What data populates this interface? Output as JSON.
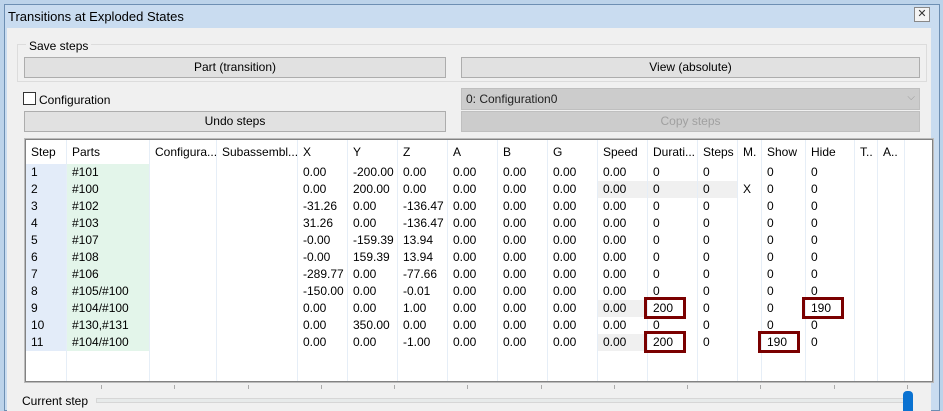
{
  "window": {
    "title": "Transitions at Exploded States",
    "close_label": "✕"
  },
  "save_steps": {
    "label": "Save steps",
    "part_button": "Part (transition)",
    "view_button": "View (absolute)"
  },
  "configuration": {
    "checkbox_label": "Configuration",
    "checked": false,
    "selected": "0: Configuration0"
  },
  "undo_button": "Undo steps",
  "copy_button": "Copy steps",
  "table": {
    "columns": [
      "Step",
      "Parts",
      "Configura...",
      "Subassembl...",
      "X",
      "Y",
      "Z",
      "A",
      "B",
      "G",
      "Speed",
      "Durati...",
      "Steps",
      "M.",
      "Show",
      "Hide",
      "T..",
      "A.."
    ],
    "rows": [
      [
        "1",
        "#101",
        "",
        "",
        "0.00",
        "-200.00",
        "0.00",
        "0.00",
        "0.00",
        "0.00",
        "0.00",
        "0",
        "0",
        "",
        "0",
        "0",
        "",
        ""
      ],
      [
        "2",
        "#100",
        "",
        "",
        "0.00",
        "200.00",
        "0.00",
        "0.00",
        "0.00",
        "0.00",
        "0.00",
        "0",
        "0",
        "X",
        "0",
        "0",
        "",
        ""
      ],
      [
        "3",
        "#102",
        "",
        "",
        "-31.26",
        "0.00",
        "-136.47",
        "0.00",
        "0.00",
        "0.00",
        "0.00",
        "0",
        "0",
        "",
        "0",
        "0",
        "",
        ""
      ],
      [
        "4",
        "#103",
        "",
        "",
        "31.26",
        "0.00",
        "-136.47",
        "0.00",
        "0.00",
        "0.00",
        "0.00",
        "0",
        "0",
        "",
        "0",
        "0",
        "",
        ""
      ],
      [
        "5",
        "#107",
        "",
        "",
        "-0.00",
        "-159.39",
        "13.94",
        "0.00",
        "0.00",
        "0.00",
        "0.00",
        "0",
        "0",
        "",
        "0",
        "0",
        "",
        ""
      ],
      [
        "6",
        "#108",
        "",
        "",
        "-0.00",
        "159.39",
        "13.94",
        "0.00",
        "0.00",
        "0.00",
        "0.00",
        "0",
        "0",
        "",
        "0",
        "0",
        "",
        ""
      ],
      [
        "7",
        "#106",
        "",
        "",
        "-289.77",
        "0.00",
        "-77.66",
        "0.00",
        "0.00",
        "0.00",
        "0.00",
        "0",
        "0",
        "",
        "0",
        "0",
        "",
        ""
      ],
      [
        "8",
        "#105/#100",
        "",
        "",
        "-150.00",
        "0.00",
        "-0.01",
        "0.00",
        "0.00",
        "0.00",
        "0.00",
        "0",
        "0",
        "",
        "0",
        "0",
        "",
        ""
      ],
      [
        "9",
        "#104/#100",
        "",
        "",
        "0.00",
        "0.00",
        "1.00",
        "0.00",
        "0.00",
        "0.00",
        "0.00",
        "200",
        "0",
        "",
        "0",
        "190",
        "",
        ""
      ],
      [
        "10",
        "#130,#131",
        "",
        "",
        "0.00",
        "350.00",
        "0.00",
        "0.00",
        "0.00",
        "0.00",
        "0.00",
        "0",
        "0",
        "",
        "0",
        "0",
        "",
        ""
      ],
      [
        "11",
        "#104/#100",
        "",
        "",
        "0.00",
        "0.00",
        "-1.00",
        "0.00",
        "0.00",
        "0.00",
        "0.00",
        "200",
        "0",
        "",
        "190",
        "0",
        "",
        ""
      ]
    ],
    "gray_cells": {
      "1": [
        10,
        11,
        12
      ],
      "8": [
        10
      ],
      "10": [
        10
      ]
    },
    "highlighted_cells": [
      [
        8,
        11
      ],
      [
        8,
        15
      ],
      [
        10,
        11
      ],
      [
        10,
        14
      ]
    ],
    "highlight_color": "#7a0000"
  },
  "slider": {
    "label": "Current step",
    "min": 0,
    "max": 11,
    "value": 11
  }
}
